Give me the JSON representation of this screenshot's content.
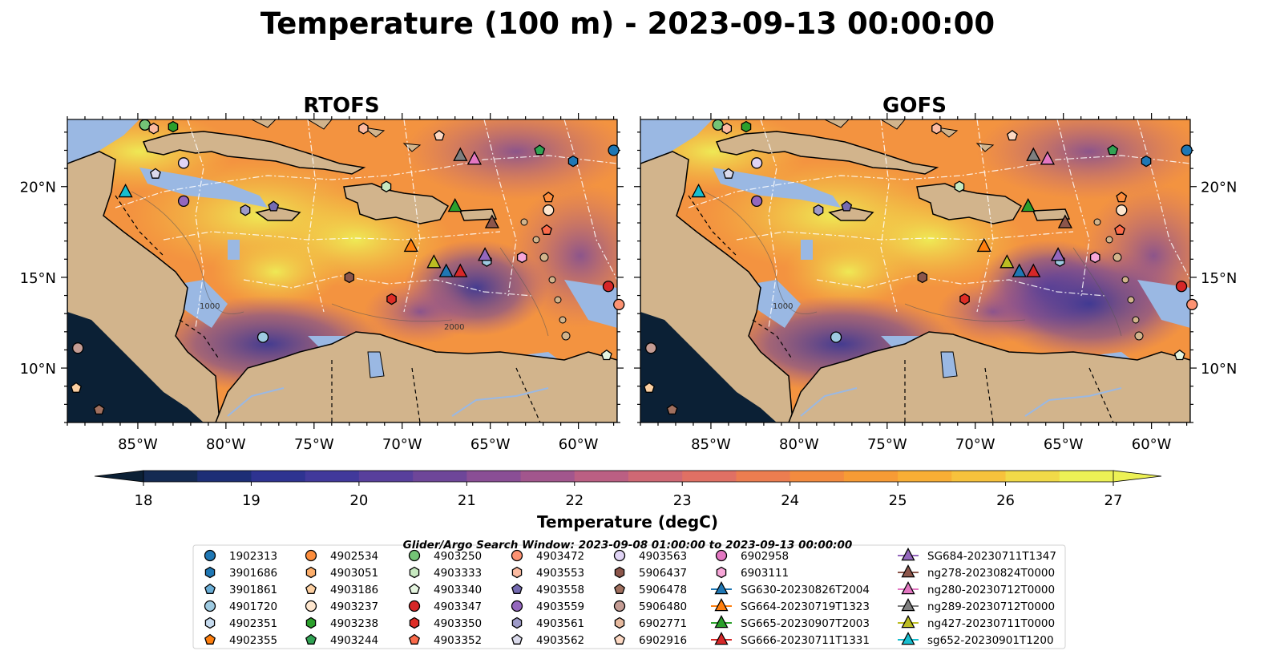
{
  "figure": {
    "title": "Temperature (100 m) - 2023-09-13 00:00:00",
    "panels": [
      {
        "title": "RTOFS"
      },
      {
        "title": "GOFS"
      }
    ],
    "lon_labels": [
      "85°W",
      "80°W",
      "75°W",
      "70°W",
      "65°W",
      "60°W"
    ],
    "lat_labels": [
      "20°N",
      "15°N",
      "10°N"
    ],
    "contour_labels": [
      "1000",
      "1000",
      "2000"
    ],
    "colorbar": {
      "label": "Temperature (degC)",
      "ticks": [
        "18",
        "19",
        "20",
        "21",
        "22",
        "23",
        "24",
        "25",
        "26",
        "27"
      ]
    },
    "legend_title": "Glider/Argo Search Window: 2023-09-08 01:00:00 to 2023-09-13 00:00:00"
  },
  "colors": {
    "land": "#d2b48c",
    "shelf": "#9ab8e3",
    "colormap": [
      "#0b2035",
      "#142a52",
      "#1d2e76",
      "#2e3391",
      "#41399b",
      "#583f9c",
      "#6e4699",
      "#8a4e95",
      "#a2568d",
      "#bb5f83",
      "#cf6874",
      "#e07064",
      "#ec7d50",
      "#f38b3f",
      "#f79b35",
      "#f8ae35",
      "#f7c23c",
      "#f1da48",
      "#edf155"
    ]
  },
  "legend": {
    "columns": [
      [
        {
          "label": "1902313",
          "marker": "circle",
          "color": "#1f77b4"
        },
        {
          "label": "3901686",
          "marker": "hexagon",
          "color": "#1f77b4"
        },
        {
          "label": "3901861",
          "marker": "pentagon",
          "color": "#6baed6"
        },
        {
          "label": "4901720",
          "marker": "circle",
          "color": "#9ecae1"
        },
        {
          "label": "4902351",
          "marker": "hexagon",
          "color": "#c6dbef"
        },
        {
          "label": "4902355",
          "marker": "pentagon",
          "color": "#ff7f0e"
        }
      ],
      [
        {
          "label": "4902534",
          "marker": "circle",
          "color": "#fd8d3c"
        },
        {
          "label": "4903051",
          "marker": "hexagon",
          "color": "#fdae6b"
        },
        {
          "label": "4903186",
          "marker": "pentagon",
          "color": "#fdd0a2"
        },
        {
          "label": "4903237",
          "marker": "circle",
          "color": "#fee6ce"
        },
        {
          "label": "4903238",
          "marker": "hexagon",
          "color": "#2ca02c"
        },
        {
          "label": "4903244",
          "marker": "pentagon",
          "color": "#31a354"
        }
      ],
      [
        {
          "label": "4903250",
          "marker": "circle",
          "color": "#74c476"
        },
        {
          "label": "4903333",
          "marker": "hexagon",
          "color": "#c7e9c0"
        },
        {
          "label": "4903340",
          "marker": "pentagon",
          "color": "#e5f5e0"
        },
        {
          "label": "4903347",
          "marker": "circle",
          "color": "#d62728"
        },
        {
          "label": "4903350",
          "marker": "hexagon",
          "color": "#de2d26"
        },
        {
          "label": "4903352",
          "marker": "pentagon",
          "color": "#fb6a4a"
        }
      ],
      [
        {
          "label": "4903472",
          "marker": "circle",
          "color": "#fc9272"
        },
        {
          "label": "4903553",
          "marker": "hexagon",
          "color": "#fcbba1"
        },
        {
          "label": "4903558",
          "marker": "pentagon",
          "color": "#756bb1"
        },
        {
          "label": "4903559",
          "marker": "circle",
          "color": "#9467bd"
        },
        {
          "label": "4903561",
          "marker": "hexagon",
          "color": "#9e9ac8"
        },
        {
          "label": "4903562",
          "marker": "pentagon",
          "color": "#dadaeb"
        }
      ],
      [
        {
          "label": "4903563",
          "marker": "circle",
          "color": "#e0d4f5"
        },
        {
          "label": "5906437",
          "marker": "hexagon",
          "color": "#8c564b"
        },
        {
          "label": "5906478",
          "marker": "pentagon",
          "color": "#a0705f"
        },
        {
          "label": "5906480",
          "marker": "circle",
          "color": "#c49c94"
        },
        {
          "label": "6902771",
          "marker": "hexagon",
          "color": "#e7ba9f"
        },
        {
          "label": "6902916",
          "marker": "pentagon",
          "color": "#fdd9c4"
        }
      ],
      [
        {
          "label": "6902958",
          "marker": "circle",
          "color": "#e377c2"
        },
        {
          "label": "6903111",
          "marker": "hexagon",
          "color": "#f7a6d8"
        },
        {
          "label": "SG630-20230826T2004",
          "marker": "triangle",
          "color": "#1f77b4"
        },
        {
          "label": "SG664-20230719T1323",
          "marker": "triangle",
          "color": "#ff7f0e"
        },
        {
          "label": "SG665-20230907T2003",
          "marker": "triangle",
          "color": "#2ca02c"
        },
        {
          "label": "SG666-20230711T1331",
          "marker": "triangle",
          "color": "#d62728"
        }
      ],
      [
        {
          "label": "SG684-20230711T1347",
          "marker": "triangle",
          "color": "#9467bd"
        },
        {
          "label": "ng278-20230824T0000",
          "marker": "triangle",
          "color": "#8c564b"
        },
        {
          "label": "ng280-20230712T0000",
          "marker": "triangle",
          "color": "#e377c2"
        },
        {
          "label": "ng289-20230712T0000",
          "marker": "triangle",
          "color": "#7f7f7f"
        },
        {
          "label": "ng427-20230711T0000",
          "marker": "triangle",
          "color": "#bcbd22"
        },
        {
          "label": "sg652-20230901T1200",
          "marker": "triangle",
          "color": "#17becf"
        }
      ]
    ]
  },
  "markers": [
    {
      "lon": -84.6,
      "lat": 23.4,
      "marker": "circle",
      "color": "#74c476"
    },
    {
      "lon": -84.1,
      "lat": 23.2,
      "marker": "hexagon",
      "color": "#fcbba1"
    },
    {
      "lon": -83.0,
      "lat": 23.3,
      "marker": "hexagon",
      "color": "#2ca02c"
    },
    {
      "lon": -72.2,
      "lat": 23.2,
      "marker": "hexagon",
      "color": "#fcbba1"
    },
    {
      "lon": -67.9,
      "lat": 22.8,
      "marker": "pentagon",
      "color": "#fdd9c4"
    },
    {
      "lon": -62.2,
      "lat": 22.0,
      "marker": "pentagon",
      "color": "#31a354"
    },
    {
      "lon": -58.0,
      "lat": 22.0,
      "marker": "circle",
      "color": "#1f77b4"
    },
    {
      "lon": -60.3,
      "lat": 21.4,
      "marker": "hexagon",
      "color": "#1f77b4"
    },
    {
      "lon": -82.4,
      "lat": 21.3,
      "marker": "circle",
      "color": "#e0d4f5"
    },
    {
      "lon": -84.0,
      "lat": 20.7,
      "marker": "pentagon",
      "color": "#dadaeb"
    },
    {
      "lon": -70.9,
      "lat": 20.0,
      "marker": "hexagon",
      "color": "#c7e9c0"
    },
    {
      "lon": -61.7,
      "lat": 19.4,
      "marker": "pentagon",
      "color": "#fd8d3c"
    },
    {
      "lon": -82.4,
      "lat": 19.2,
      "marker": "circle",
      "color": "#9467bd"
    },
    {
      "lon": -77.3,
      "lat": 18.9,
      "marker": "pentagon",
      "color": "#756bb1"
    },
    {
      "lon": -78.9,
      "lat": 18.7,
      "marker": "hexagon",
      "color": "#9e9ac8"
    },
    {
      "lon": -61.7,
      "lat": 18.7,
      "marker": "circle",
      "color": "#fee6ce"
    },
    {
      "lon": -61.8,
      "lat": 17.6,
      "marker": "pentagon",
      "color": "#fb6a4a"
    },
    {
      "lon": -63.2,
      "lat": 16.1,
      "marker": "hexagon",
      "color": "#f7a6d8"
    },
    {
      "lon": -65.2,
      "lat": 15.9,
      "marker": "hexagon",
      "color": "#9ecae1"
    },
    {
      "lon": -73.0,
      "lat": 15.0,
      "marker": "hexagon",
      "color": "#8c564b"
    },
    {
      "lon": -58.3,
      "lat": 14.5,
      "marker": "circle",
      "color": "#d62728"
    },
    {
      "lon": -70.6,
      "lat": 13.8,
      "marker": "hexagon",
      "color": "#de2d26"
    },
    {
      "lon": -57.7,
      "lat": 13.5,
      "marker": "circle",
      "color": "#fc9272"
    },
    {
      "lon": -77.9,
      "lat": 11.7,
      "marker": "circle",
      "color": "#9ecae1"
    },
    {
      "lon": -88.4,
      "lat": 11.1,
      "marker": "circle",
      "color": "#c49c94"
    },
    {
      "lon": -58.4,
      "lat": 10.7,
      "marker": "pentagon",
      "color": "#e5f5e0"
    },
    {
      "lon": -88.5,
      "lat": 8.9,
      "marker": "pentagon",
      "color": "#fdd0a2"
    },
    {
      "lon": -87.2,
      "lat": 7.7,
      "marker": "pentagon",
      "color": "#a0705f"
    },
    {
      "lon": -85.7,
      "lat": 19.7,
      "marker": "triangle",
      "color": "#17becf"
    },
    {
      "lon": -66.7,
      "lat": 21.7,
      "marker": "triangle",
      "color": "#7f7f7f"
    },
    {
      "lon": -65.9,
      "lat": 21.5,
      "marker": "triangle",
      "color": "#e377c2"
    },
    {
      "lon": -67.0,
      "lat": 18.9,
      "marker": "triangle",
      "color": "#2ca02c"
    },
    {
      "lon": -64.9,
      "lat": 18.0,
      "marker": "triangle",
      "color": "#8c564b"
    },
    {
      "lon": -69.5,
      "lat": 16.7,
      "marker": "triangle",
      "color": "#ff7f0e"
    },
    {
      "lon": -68.2,
      "lat": 15.8,
      "marker": "triangle",
      "color": "#bcbd22"
    },
    {
      "lon": -67.5,
      "lat": 15.3,
      "marker": "triangle",
      "color": "#1f77b4"
    },
    {
      "lon": -66.7,
      "lat": 15.3,
      "marker": "triangle",
      "color": "#d62728"
    },
    {
      "lon": -65.3,
      "lat": 16.2,
      "marker": "triangle",
      "color": "#9467bd"
    }
  ]
}
